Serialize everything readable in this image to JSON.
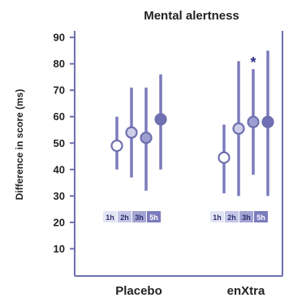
{
  "colors": {
    "axis": "#6f6fae",
    "bar": "#7b7bbd",
    "marker_stroke": "#6f6fae",
    "marker_fills": [
      "#ffffff",
      "#cbcde9",
      "#9d9fd0",
      "#7071b4"
    ],
    "box_fills": [
      "#e4e5f3",
      "#c4c6e6",
      "#a2a4d3",
      "#7a7cbc"
    ],
    "star": "#2d2d8a"
  },
  "chart_data": {
    "type": "scatter",
    "title": "Mental alertness",
    "ylabel": "Difference in score (ms)",
    "xlabel": "",
    "ylim": [
      0,
      95
    ],
    "yticks": [
      10,
      20,
      30,
      40,
      50,
      60,
      70,
      80,
      90
    ],
    "grid": false,
    "groups": [
      "Placebo",
      "enXtra"
    ],
    "timepoints": [
      "1h",
      "2h",
      "3h",
      "5h"
    ],
    "series": [
      {
        "group": "Placebo",
        "points": [
          {
            "time": "1h",
            "mean": 49,
            "low": 40,
            "high": 60
          },
          {
            "time": "2h",
            "mean": 54,
            "low": 37,
            "high": 71
          },
          {
            "time": "3h",
            "mean": 52,
            "low": 32,
            "high": 71
          },
          {
            "time": "5h",
            "mean": 59,
            "low": 40,
            "high": 76
          }
        ]
      },
      {
        "group": "enXtra",
        "points": [
          {
            "time": "1h",
            "mean": 44.5,
            "low": 31,
            "high": 57
          },
          {
            "time": "2h",
            "mean": 55.5,
            "low": 30,
            "high": 81
          },
          {
            "time": "3h",
            "mean": 58,
            "low": 38,
            "high": 78
          },
          {
            "time": "5h",
            "mean": 58,
            "low": 30,
            "high": 85
          }
        ]
      }
    ],
    "annotations": [
      {
        "group": "enXtra",
        "time": "3h",
        "text": "*"
      }
    ]
  }
}
